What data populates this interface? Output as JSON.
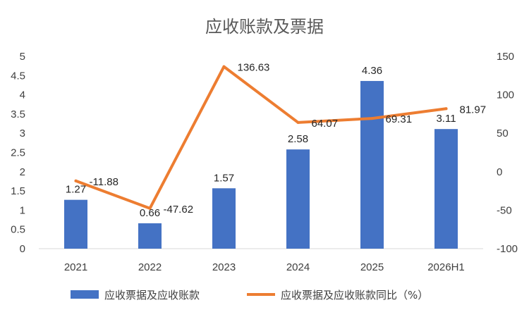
{
  "chart_data": {
    "type": "bar",
    "title": "应收账款及票据",
    "categories": [
      "2021",
      "2022",
      "2023",
      "2024",
      "2025",
      "2026H1"
    ],
    "series": [
      {
        "name": "应收票据及应收账款",
        "type": "bar",
        "axis": "left",
        "color": "#4472C4",
        "values": [
          1.27,
          0.66,
          1.57,
          2.58,
          4.36,
          3.11
        ],
        "labels": [
          "1.27",
          "0.66",
          "1.57",
          "2.58",
          "4.36",
          "3.11"
        ]
      },
      {
        "name": "应收票据及应收账款同比（%）",
        "type": "line",
        "axis": "right",
        "color": "#ED7D31",
        "values": [
          -11.88,
          -47.62,
          136.63,
          64.07,
          69.31,
          81.97
        ],
        "labels": [
          "-11.88",
          "-47.62",
          "136.63",
          "64.07",
          "69.31",
          "81.97"
        ]
      }
    ],
    "y_left": {
      "min": 0,
      "max": 5,
      "ticks": [
        "0",
        "0.5",
        "1",
        "1.5",
        "2",
        "2.5",
        "3",
        "3.5",
        "4",
        "4.5",
        "5"
      ]
    },
    "y_right": {
      "min": -100,
      "max": 150,
      "ticks": [
        "-100",
        "-50",
        "0",
        "50",
        "100",
        "150"
      ]
    },
    "grid": false,
    "legend": "bottom"
  }
}
